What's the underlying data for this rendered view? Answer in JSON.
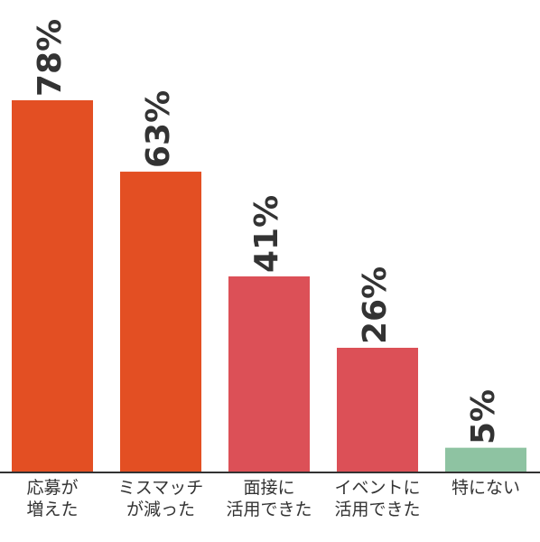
{
  "chart_data": {
    "type": "bar",
    "categories": [
      [
        "応募が",
        "増えた"
      ],
      [
        "ミスマッチ",
        "が減った"
      ],
      [
        "面接に",
        "活用できた"
      ],
      [
        "イベントに",
        "活用できた"
      ],
      [
        "特にない"
      ]
    ],
    "values": [
      78,
      63,
      41,
      26,
      5
    ],
    "value_labels": [
      "78%",
      "63%",
      "41%",
      "26%",
      "5%"
    ],
    "colors": [
      "#e34f23",
      "#e34f23",
      "#dc5057",
      "#dc5057",
      "#8ec3a2"
    ],
    "ylim": [
      0,
      78
    ],
    "grid": false,
    "legend": "none"
  }
}
